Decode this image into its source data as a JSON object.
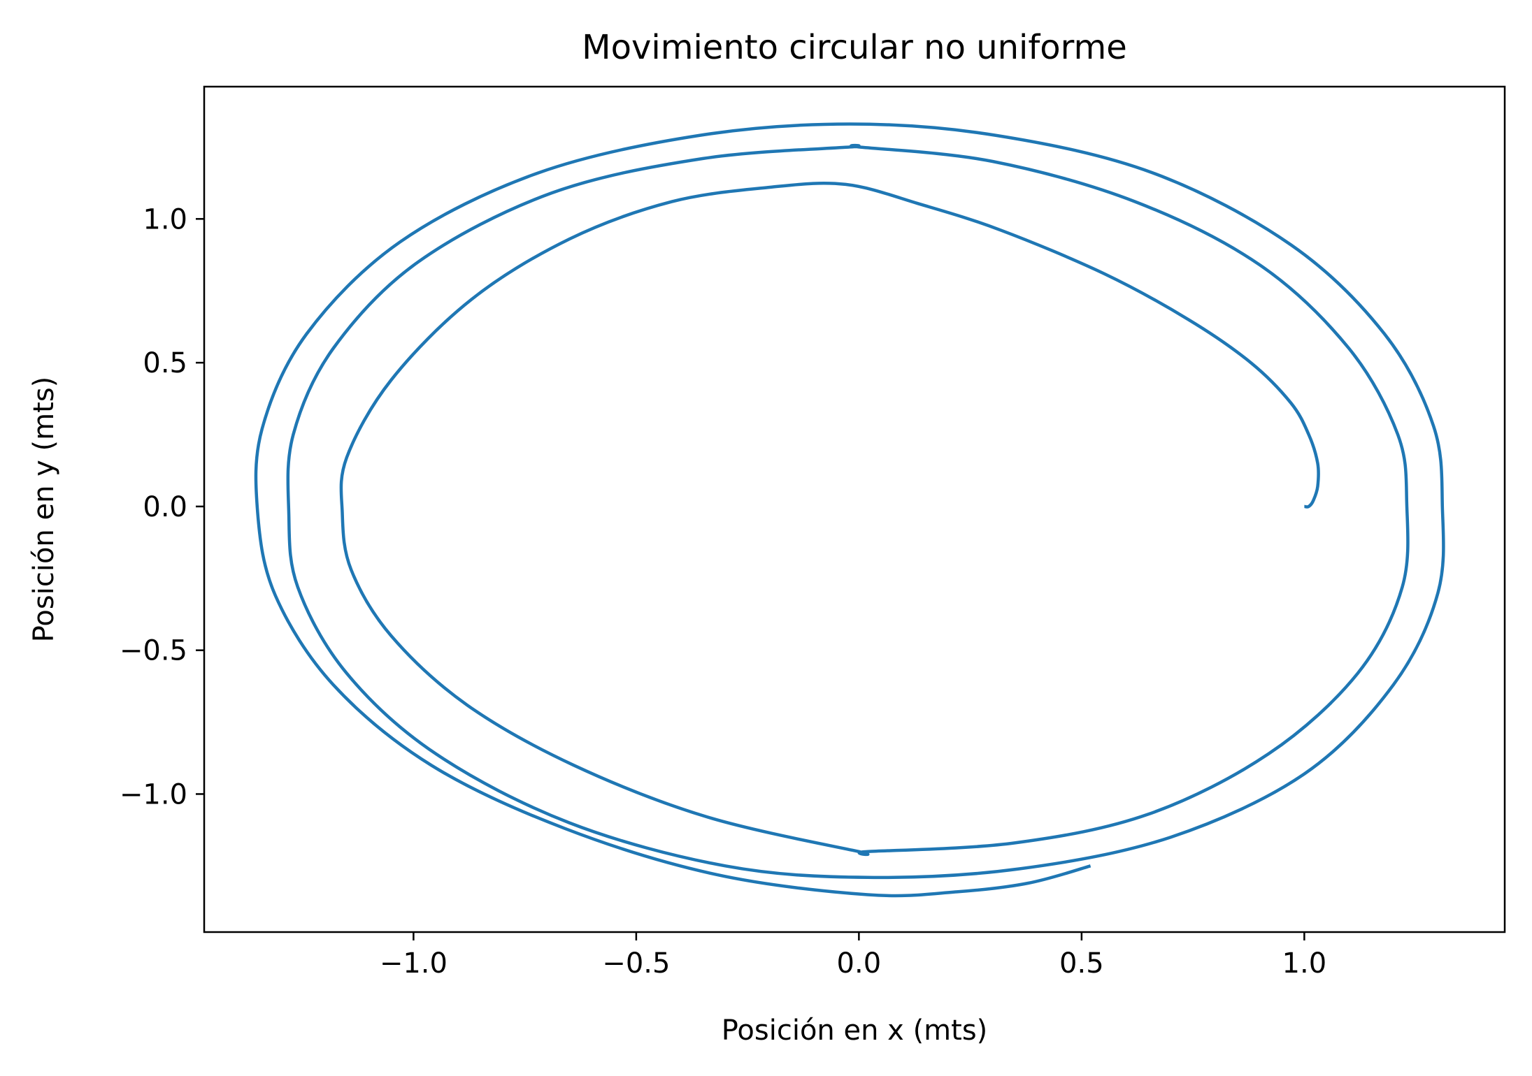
{
  "chart_data": {
    "type": "line",
    "title": "Movimiento circular no uniforme",
    "xlabel": "Posición en x (mts)",
    "ylabel": "Posición en y (mts)",
    "xlim": [
      -1.47,
      1.45
    ],
    "ylim": [
      -1.48,
      1.46
    ],
    "xticks": [
      {
        "value": -1.0,
        "label": "−1.0"
      },
      {
        "value": -0.5,
        "label": "−0.5"
      },
      {
        "value": 0.0,
        "label": "0.0"
      },
      {
        "value": 0.5,
        "label": "0.5"
      },
      {
        "value": 1.0,
        "label": "1.0"
      }
    ],
    "yticks": [
      {
        "value": 1.0,
        "label": "1.0"
      },
      {
        "value": 0.5,
        "label": "0.5"
      },
      {
        "value": 0.0,
        "label": "0.0"
      },
      {
        "value": -0.5,
        "label": "−0.5"
      },
      {
        "value": -1.0,
        "label": "−1.0"
      }
    ],
    "grid": false,
    "series": [
      {
        "color": "#1f77b4",
        "points": [
          [
            1.0,
            0.0
          ],
          [
            1.01,
            0.0
          ],
          [
            1.02,
            0.02
          ],
          [
            1.03,
            0.07
          ],
          [
            1.03,
            0.15
          ],
          [
            1.01,
            0.25
          ],
          [
            0.97,
            0.36
          ],
          [
            0.88,
            0.5
          ],
          [
            0.74,
            0.65
          ],
          [
            0.55,
            0.81
          ],
          [
            0.32,
            0.96
          ],
          [
            0.14,
            1.05
          ],
          [
            -0.03,
            1.12
          ],
          [
            -0.2,
            1.11
          ],
          [
            -0.42,
            1.06
          ],
          [
            -0.65,
            0.93
          ],
          [
            -0.87,
            0.72
          ],
          [
            -1.05,
            0.44
          ],
          [
            -1.15,
            0.17
          ],
          [
            -1.16,
            -0.02
          ],
          [
            -1.14,
            -0.22
          ],
          [
            -1.05,
            -0.45
          ],
          [
            -0.88,
            -0.69
          ],
          [
            -0.64,
            -0.9
          ],
          [
            -0.34,
            -1.08
          ],
          [
            0.0,
            -1.2
          ],
          [
            0.02,
            -1.2
          ],
          [
            0.35,
            -1.17
          ],
          [
            0.65,
            -1.07
          ],
          [
            0.92,
            -0.86
          ],
          [
            1.12,
            -0.58
          ],
          [
            1.22,
            -0.28
          ],
          [
            1.23,
            0.01
          ],
          [
            1.21,
            0.25
          ],
          [
            1.1,
            0.55
          ],
          [
            0.9,
            0.84
          ],
          [
            0.62,
            1.06
          ],
          [
            0.3,
            1.2
          ],
          [
            0.0,
            1.25
          ],
          [
            -0.02,
            1.25
          ],
          [
            -0.35,
            1.21
          ],
          [
            -0.69,
            1.09
          ],
          [
            -0.99,
            0.85
          ],
          [
            -1.18,
            0.55
          ],
          [
            -1.27,
            0.25
          ],
          [
            -1.28,
            -0.02
          ],
          [
            -1.26,
            -0.28
          ],
          [
            -1.15,
            -0.58
          ],
          [
            -0.95,
            -0.86
          ],
          [
            -0.65,
            -1.1
          ],
          [
            -0.3,
            -1.25
          ],
          [
            0.02,
            -1.29
          ],
          [
            0.36,
            -1.26
          ],
          [
            0.7,
            -1.15
          ],
          [
            1.0,
            -0.93
          ],
          [
            1.2,
            -0.62
          ],
          [
            1.3,
            -0.3
          ],
          [
            1.31,
            0.0
          ],
          [
            1.29,
            0.28
          ],
          [
            1.18,
            0.6
          ],
          [
            0.97,
            0.91
          ],
          [
            0.66,
            1.16
          ],
          [
            0.31,
            1.29
          ],
          [
            -0.02,
            1.33
          ],
          [
            -0.36,
            1.29
          ],
          [
            -0.72,
            1.16
          ],
          [
            -1.03,
            0.92
          ],
          [
            -1.24,
            0.6
          ],
          [
            -1.34,
            0.27
          ],
          [
            -1.35,
            -0.02
          ],
          [
            -1.31,
            -0.31
          ],
          [
            -1.18,
            -0.62
          ],
          [
            -0.96,
            -0.9
          ],
          [
            -0.66,
            -1.12
          ],
          [
            -0.32,
            -1.28
          ],
          [
            0.02,
            -1.35
          ],
          [
            0.22,
            -1.34
          ],
          [
            0.38,
            -1.31
          ],
          [
            0.52,
            -1.25
          ]
        ]
      }
    ]
  }
}
